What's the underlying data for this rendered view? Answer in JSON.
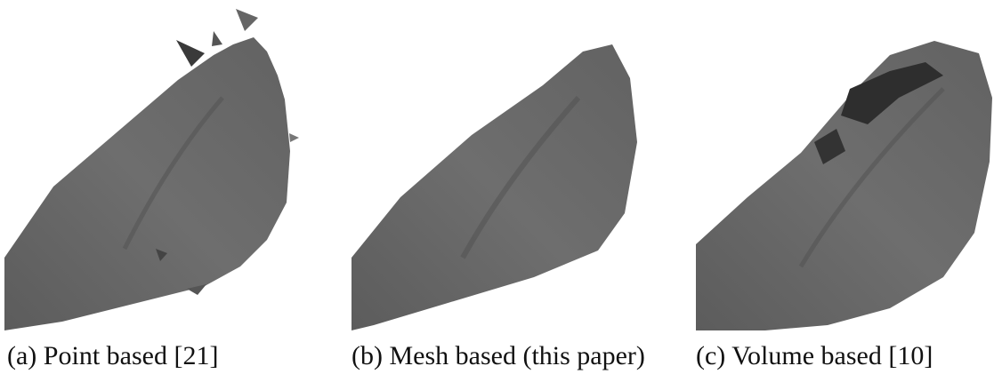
{
  "figure": {
    "panels": [
      {
        "caption": "(a) Point based [21]"
      },
      {
        "caption": "(b) Mesh based (this paper)"
      },
      {
        "caption": "(c) Volume based [10]"
      }
    ]
  }
}
